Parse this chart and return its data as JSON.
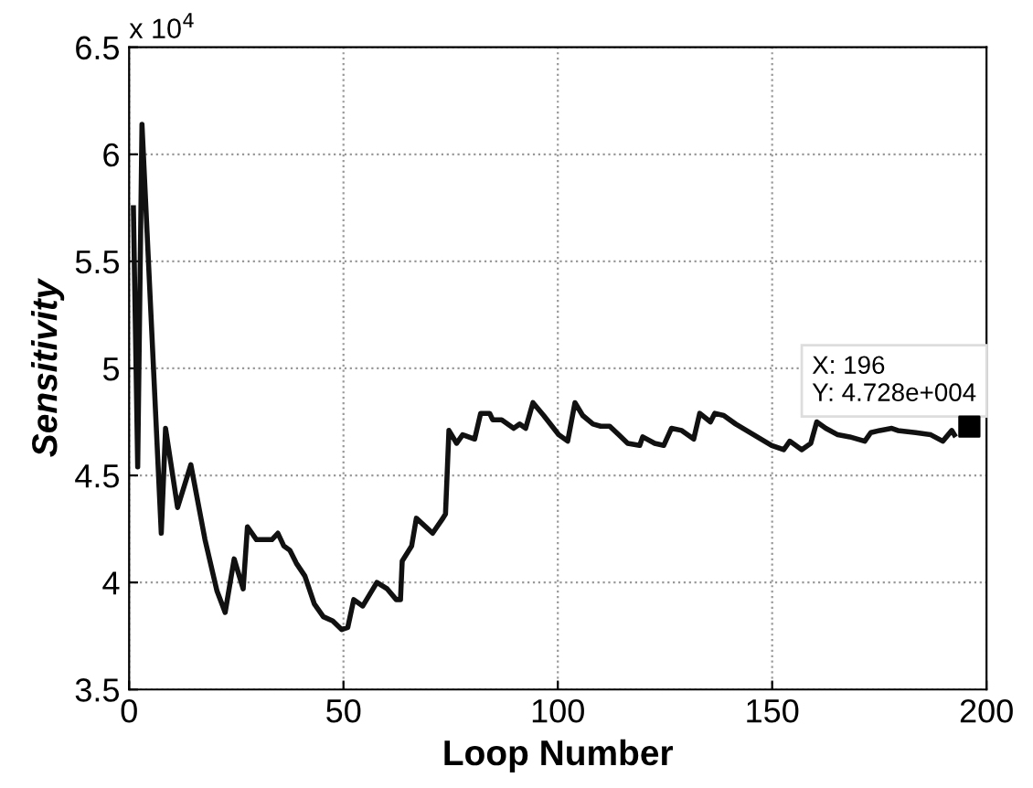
{
  "chart_data": {
    "type": "line",
    "xlabel": "Loop Number",
    "ylabel": "Sensitivity",
    "xlim": [
      0,
      200
    ],
    "xticks": [
      0,
      50,
      100,
      150,
      200
    ],
    "ylim": [
      3.5,
      6.5
    ],
    "yticks": [
      3.5,
      4,
      4.5,
      5,
      5.5,
      6,
      6.5
    ],
    "grid": true,
    "line_style": "solid",
    "marker": "none",
    "annotations": [
      "x 10$^{4}$",
      {
        "text": "X: 196\nY: 4.728e+004",
        "x": 196,
        "y": 4.728
      }
    ],
    "series": [
      {
        "color": "#111111",
        "x": [
          1,
          2,
          3,
          7.5,
          8.5,
          11.3,
          14.4,
          17.7,
          20.5,
          22.4,
          24.5,
          26.6,
          27.6,
          29.7,
          33.3,
          34.7,
          36.1,
          37.5,
          39,
          41,
          43.2,
          45.3,
          47.5,
          49.6,
          51,
          52.4,
          54.5,
          57.8,
          60.2,
          62.3,
          63.3,
          63.7,
          65.9,
          67,
          70.8,
          73.2,
          73.8,
          74.6,
          76.4,
          77.8,
          80.6,
          82,
          84.1,
          84.8,
          86.9,
          89.7,
          91.1,
          92.5,
          94.2,
          96.7,
          100.2,
          102.3,
          104,
          105.8,
          108.2,
          110,
          112.1,
          114.2,
          116.3,
          119.1,
          119.8,
          122.6,
          124.7,
          126.5,
          128.9,
          131.7,
          133.1,
          135.6,
          136.6,
          138.7,
          141.5,
          145.7,
          149.9,
          152.7,
          154.1,
          156.9,
          159,
          160.4,
          162.5,
          165.3,
          168.1,
          171.6,
          173,
          175.1,
          177.9,
          179.3,
          183.5,
          187,
          189.8,
          191.9,
          192.5
        ],
        "values": [
          5.75,
          4.54,
          6.14,
          4.23,
          4.72,
          4.35,
          4.55,
          4.2,
          3.96,
          3.86,
          4.11,
          3.97,
          4.26,
          4.2,
          4.2,
          4.23,
          4.17,
          4.15,
          4.09,
          4.03,
          3.9,
          3.84,
          3.82,
          3.78,
          3.79,
          3.92,
          3.89,
          4.0,
          3.97,
          3.92,
          3.92,
          4.1,
          4.17,
          4.3,
          4.23,
          4.3,
          4.32,
          4.71,
          4.65,
          4.69,
          4.67,
          4.79,
          4.79,
          4.76,
          4.76,
          4.72,
          4.74,
          4.72,
          4.84,
          4.78,
          4.69,
          4.66,
          4.84,
          4.78,
          4.74,
          4.73,
          4.73,
          4.69,
          4.65,
          4.64,
          4.68,
          4.65,
          4.64,
          4.72,
          4.71,
          4.67,
          4.79,
          4.75,
          4.79,
          4.78,
          4.74,
          4.69,
          4.64,
          4.62,
          4.66,
          4.62,
          4.65,
          4.75,
          4.72,
          4.69,
          4.68,
          4.66,
          4.7,
          4.71,
          4.72,
          4.71,
          4.7,
          4.69,
          4.66,
          4.71,
          4.69
        ]
      },
      {
        "type": "scatter",
        "marker": "square",
        "color": "#000000",
        "x": [
          196
        ],
        "values": [
          4.728
        ]
      }
    ]
  }
}
